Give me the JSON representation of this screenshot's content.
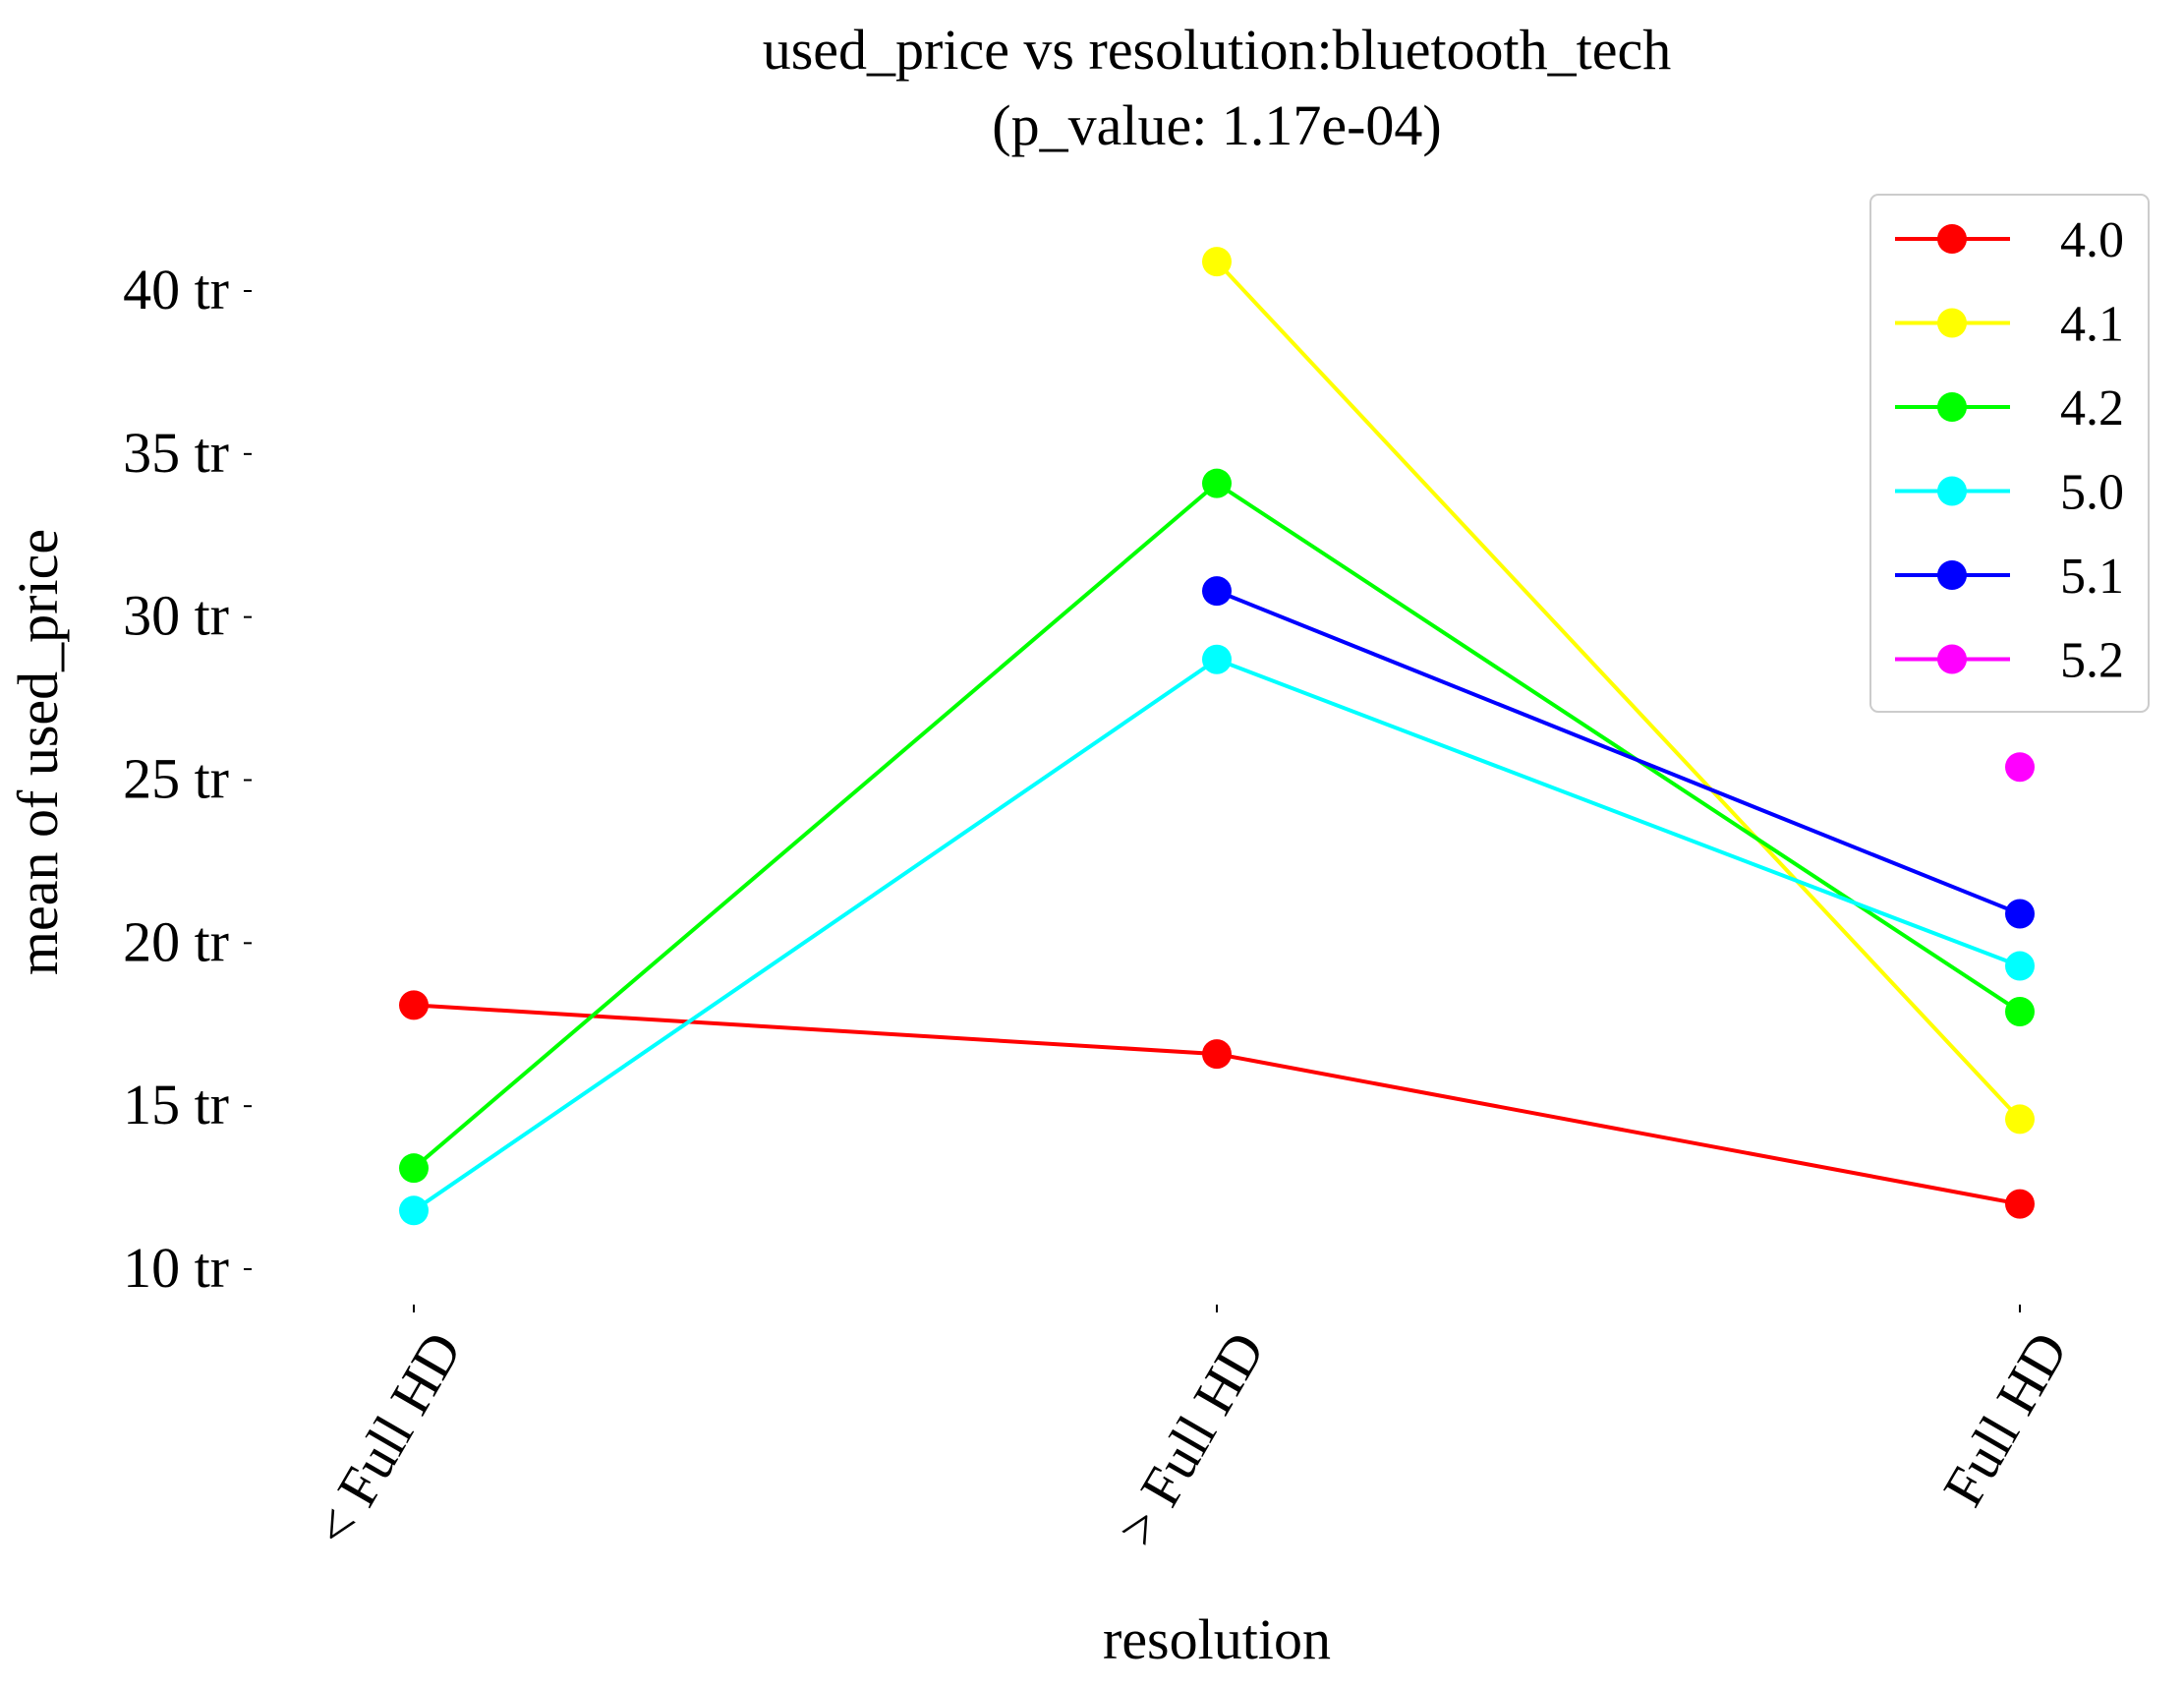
{
  "chart_data": {
    "type": "line",
    "title": "used_price vs resolution:bluetooth_tech",
    "subtitle": "(p_value: 1.17e-04)",
    "xlabel": "resolution",
    "ylabel": "mean of used_price",
    "categories": [
      "< Full HD",
      "> Full HD",
      "Full HD"
    ],
    "ylim": [
      9,
      42.5
    ],
    "yticks": [
      10,
      15,
      20,
      25,
      30,
      35,
      40
    ],
    "ytick_suffix": " tr",
    "grid": false,
    "legend_position": "top-right",
    "series": [
      {
        "name": "4.0",
        "color": "#ff0000",
        "values": [
          18.1,
          16.6,
          12.0
        ]
      },
      {
        "name": "4.1",
        "color": "#ffff00",
        "values": [
          null,
          40.9,
          14.6
        ]
      },
      {
        "name": "4.2",
        "color": "#00ff00",
        "values": [
          13.1,
          34.1,
          17.9
        ]
      },
      {
        "name": "5.0",
        "color": "#00ffff",
        "values": [
          11.8,
          28.7,
          19.3
        ]
      },
      {
        "name": "5.1",
        "color": "#0000ff",
        "values": [
          null,
          30.8,
          20.9
        ]
      },
      {
        "name": "5.2",
        "color": "#ff00ff",
        "values": [
          null,
          null,
          25.4
        ]
      }
    ]
  }
}
